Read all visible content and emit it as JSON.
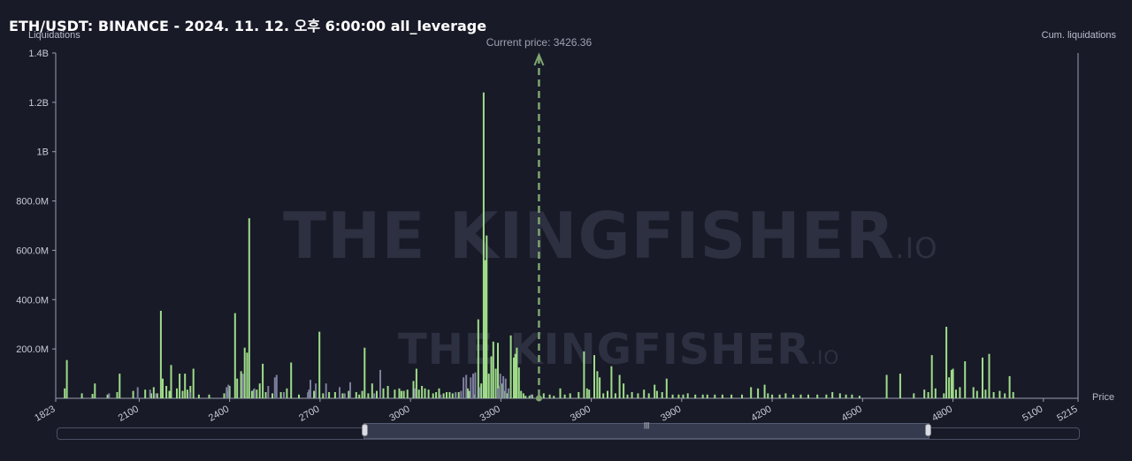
{
  "header": {
    "title": "ETH/USDT: BINANCE - 2024. 11. 12. 오후 6:00:00 all_leverage"
  },
  "watermark": {
    "text": "THE KINGFISHER",
    "suffix": ".IO"
  },
  "colors": {
    "background": "#181a27",
    "bar_long": "#9fdc8a",
    "bar_short": "#7d7f9e",
    "current_price_line": "#7fa46f",
    "axis": "#9a9eb0"
  },
  "chart_data": {
    "type": "bar",
    "ylabel": "Liquidations",
    "y2label": "Cum. liquidations",
    "xlabel": "Price",
    "xlim": [
      1823,
      5215
    ],
    "ylim": [
      0,
      1400000000
    ],
    "xticks": [
      "1823",
      "2100",
      "2400",
      "2700",
      "3000",
      "3300",
      "3600",
      "3900",
      "4200",
      "4500",
      "4800",
      "5100",
      "5215"
    ],
    "yticks": [
      "200.0M",
      "400.0M",
      "600.0M",
      "800.0M",
      "1B",
      "1.2B",
      "1.4B"
    ],
    "current_price": {
      "label": "Current price: 3426.36",
      "value": 3426.36
    },
    "series": [
      {
        "color": "#9fdc8a",
        "points": [
          [
            1853,
            40000000
          ],
          [
            1860,
            155000000
          ],
          [
            1910,
            20000000
          ],
          [
            1945,
            18000000
          ],
          [
            1953,
            60000000
          ],
          [
            1995,
            15000000
          ],
          [
            2027,
            25000000
          ],
          [
            2035,
            100000000
          ],
          [
            2080,
            30000000
          ],
          [
            2120,
            35000000
          ],
          [
            2140,
            20000000
          ],
          [
            2148,
            45000000
          ],
          [
            2160,
            20000000
          ],
          [
            2172,
            355000000
          ],
          [
            2178,
            80000000
          ],
          [
            2190,
            50000000
          ],
          [
            2200,
            30000000
          ],
          [
            2206,
            135000000
          ],
          [
            2225,
            40000000
          ],
          [
            2234,
            100000000
          ],
          [
            2244,
            30000000
          ],
          [
            2252,
            100000000
          ],
          [
            2260,
            35000000
          ],
          [
            2270,
            50000000
          ],
          [
            2280,
            120000000
          ],
          [
            2298,
            15000000
          ],
          [
            2332,
            15000000
          ],
          [
            2382,
            20000000
          ],
          [
            2392,
            30000000
          ],
          [
            2400,
            50000000
          ],
          [
            2418,
            345000000
          ],
          [
            2425,
            80000000
          ],
          [
            2438,
            110000000
          ],
          [
            2450,
            205000000
          ],
          [
            2458,
            185000000
          ],
          [
            2465,
            730000000
          ],
          [
            2474,
            30000000
          ],
          [
            2480,
            35000000
          ],
          [
            2490,
            35000000
          ],
          [
            2500,
            60000000
          ],
          [
            2510,
            140000000
          ],
          [
            2520,
            25000000
          ],
          [
            2542,
            20000000
          ],
          [
            2570,
            25000000
          ],
          [
            2590,
            40000000
          ],
          [
            2604,
            145000000
          ],
          [
            2630,
            15000000
          ],
          [
            2660,
            20000000
          ],
          [
            2680,
            30000000
          ],
          [
            2698,
            270000000
          ],
          [
            2710,
            20000000
          ],
          [
            2730,
            25000000
          ],
          [
            2750,
            25000000
          ],
          [
            2775,
            20000000
          ],
          [
            2795,
            30000000
          ],
          [
            2820,
            25000000
          ],
          [
            2830,
            15000000
          ],
          [
            2840,
            30000000
          ],
          [
            2848,
            205000000
          ],
          [
            2860,
            20000000
          ],
          [
            2873,
            60000000
          ],
          [
            2888,
            30000000
          ],
          [
            2910,
            40000000
          ],
          [
            2925,
            50000000
          ],
          [
            2948,
            35000000
          ],
          [
            2963,
            40000000
          ],
          [
            2970,
            30000000
          ],
          [
            2978,
            30000000
          ],
          [
            2990,
            35000000
          ],
          [
            3010,
            70000000
          ],
          [
            3020,
            120000000
          ],
          [
            3028,
            35000000
          ],
          [
            3038,
            50000000
          ],
          [
            3048,
            40000000
          ],
          [
            3060,
            35000000
          ],
          [
            3075,
            20000000
          ],
          [
            3085,
            25000000
          ],
          [
            3095,
            40000000
          ],
          [
            3110,
            20000000
          ],
          [
            3120,
            25000000
          ],
          [
            3130,
            25000000
          ],
          [
            3140,
            20000000
          ],
          [
            3150,
            20000000
          ],
          [
            3160,
            25000000
          ],
          [
            3190,
            40000000
          ],
          [
            3195,
            30000000
          ],
          [
            3210,
            15000000
          ],
          [
            3225,
            320000000
          ],
          [
            3235,
            60000000
          ],
          [
            3243,
            1240000000
          ],
          [
            3248,
            560000000
          ],
          [
            3253,
            660000000
          ],
          [
            3260,
            100000000
          ],
          [
            3268,
            170000000
          ],
          [
            3275,
            230000000
          ],
          [
            3283,
            120000000
          ],
          [
            3290,
            225000000
          ],
          [
            3297,
            50000000
          ],
          [
            3305,
            60000000
          ],
          [
            3310,
            30000000
          ],
          [
            3320,
            20000000
          ],
          [
            3333,
            255000000
          ],
          [
            3343,
            165000000
          ],
          [
            3348,
            180000000
          ],
          [
            3353,
            205000000
          ],
          [
            3360,
            125000000
          ],
          [
            3367,
            30000000
          ],
          [
            3375,
            20000000
          ],
          [
            3382,
            10000000
          ],
          [
            3395,
            10000000
          ],
          [
            3404,
            15000000
          ],
          [
            3442,
            20000000
          ],
          [
            3462,
            15000000
          ],
          [
            3476,
            10000000
          ],
          [
            3497,
            40000000
          ],
          [
            3512,
            15000000
          ],
          [
            3530,
            20000000
          ],
          [
            3558,
            25000000
          ],
          [
            3576,
            190000000
          ],
          [
            3586,
            40000000
          ],
          [
            3593,
            35000000
          ],
          [
            3610,
            175000000
          ],
          [
            3620,
            110000000
          ],
          [
            3628,
            85000000
          ],
          [
            3640,
            20000000
          ],
          [
            3654,
            30000000
          ],
          [
            3667,
            130000000
          ],
          [
            3680,
            20000000
          ],
          [
            3694,
            95000000
          ],
          [
            3707,
            60000000
          ],
          [
            3720,
            15000000
          ],
          [
            3735,
            25000000
          ],
          [
            3755,
            20000000
          ],
          [
            3775,
            35000000
          ],
          [
            3791,
            20000000
          ],
          [
            3810,
            55000000
          ],
          [
            3818,
            30000000
          ],
          [
            3835,
            25000000
          ],
          [
            3850,
            80000000
          ],
          [
            3870,
            15000000
          ],
          [
            3890,
            15000000
          ],
          [
            3905,
            15000000
          ],
          [
            3920,
            20000000
          ],
          [
            3945,
            15000000
          ],
          [
            3970,
            15000000
          ],
          [
            3985,
            15000000
          ],
          [
            4010,
            15000000
          ],
          [
            4035,
            15000000
          ],
          [
            4065,
            15000000
          ],
          [
            4100,
            15000000
          ],
          [
            4130,
            45000000
          ],
          [
            4153,
            40000000
          ],
          [
            4175,
            55000000
          ],
          [
            4186,
            20000000
          ],
          [
            4200,
            15000000
          ],
          [
            4225,
            15000000
          ],
          [
            4245,
            20000000
          ],
          [
            4270,
            15000000
          ],
          [
            4295,
            15000000
          ],
          [
            4320,
            15000000
          ],
          [
            4350,
            15000000
          ],
          [
            4380,
            15000000
          ],
          [
            4400,
            25000000
          ],
          [
            4425,
            20000000
          ],
          [
            4445,
            15000000
          ],
          [
            4465,
            15000000
          ],
          [
            4490,
            10000000
          ],
          [
            4580,
            95000000
          ],
          [
            4625,
            100000000
          ],
          [
            4670,
            20000000
          ],
          [
            4705,
            35000000
          ],
          [
            4718,
            25000000
          ],
          [
            4730,
            175000000
          ],
          [
            4742,
            40000000
          ],
          [
            4770,
            20000000
          ],
          [
            4778,
            290000000
          ],
          [
            4787,
            85000000
          ],
          [
            4795,
            115000000
          ],
          [
            4800,
            120000000
          ],
          [
            4810,
            35000000
          ],
          [
            4823,
            45000000
          ],
          [
            4840,
            150000000
          ],
          [
            4868,
            45000000
          ],
          [
            4880,
            30000000
          ],
          [
            4898,
            165000000
          ],
          [
            4908,
            35000000
          ],
          [
            4920,
            180000000
          ],
          [
            4935,
            25000000
          ],
          [
            4955,
            30000000
          ],
          [
            4972,
            20000000
          ],
          [
            4988,
            90000000
          ],
          [
            5000,
            25000000
          ]
        ]
      },
      {
        "color": "#7d7f9e",
        "points": [
          [
            2000,
            20000000
          ],
          [
            2095,
            45000000
          ],
          [
            2136,
            35000000
          ],
          [
            2156,
            20000000
          ],
          [
            2268,
            25000000
          ],
          [
            2390,
            45000000
          ],
          [
            2396,
            55000000
          ],
          [
            2444,
            100000000
          ],
          [
            2482,
            40000000
          ],
          [
            2528,
            50000000
          ],
          [
            2550,
            85000000
          ],
          [
            2556,
            95000000
          ],
          [
            2580,
            25000000
          ],
          [
            2660,
            25000000
          ],
          [
            2663,
            35000000
          ],
          [
            2668,
            75000000
          ],
          [
            2686,
            60000000
          ],
          [
            2720,
            60000000
          ],
          [
            2765,
            45000000
          ],
          [
            2782,
            20000000
          ],
          [
            2800,
            65000000
          ],
          [
            2880,
            20000000
          ],
          [
            2900,
            115000000
          ],
          [
            3015,
            40000000
          ],
          [
            3100,
            15000000
          ],
          [
            3150,
            25000000
          ],
          [
            3168,
            30000000
          ],
          [
            3176,
            85000000
          ],
          [
            3185,
            95000000
          ],
          [
            3200,
            85000000
          ],
          [
            3208,
            100000000
          ],
          [
            3215,
            105000000
          ],
          [
            3230,
            45000000
          ],
          [
            3290,
            40000000
          ],
          [
            3298,
            100000000
          ],
          [
            3308,
            90000000
          ],
          [
            3316,
            80000000
          ],
          [
            3325,
            40000000
          ],
          [
            3400,
            15000000
          ]
        ]
      }
    ]
  }
}
